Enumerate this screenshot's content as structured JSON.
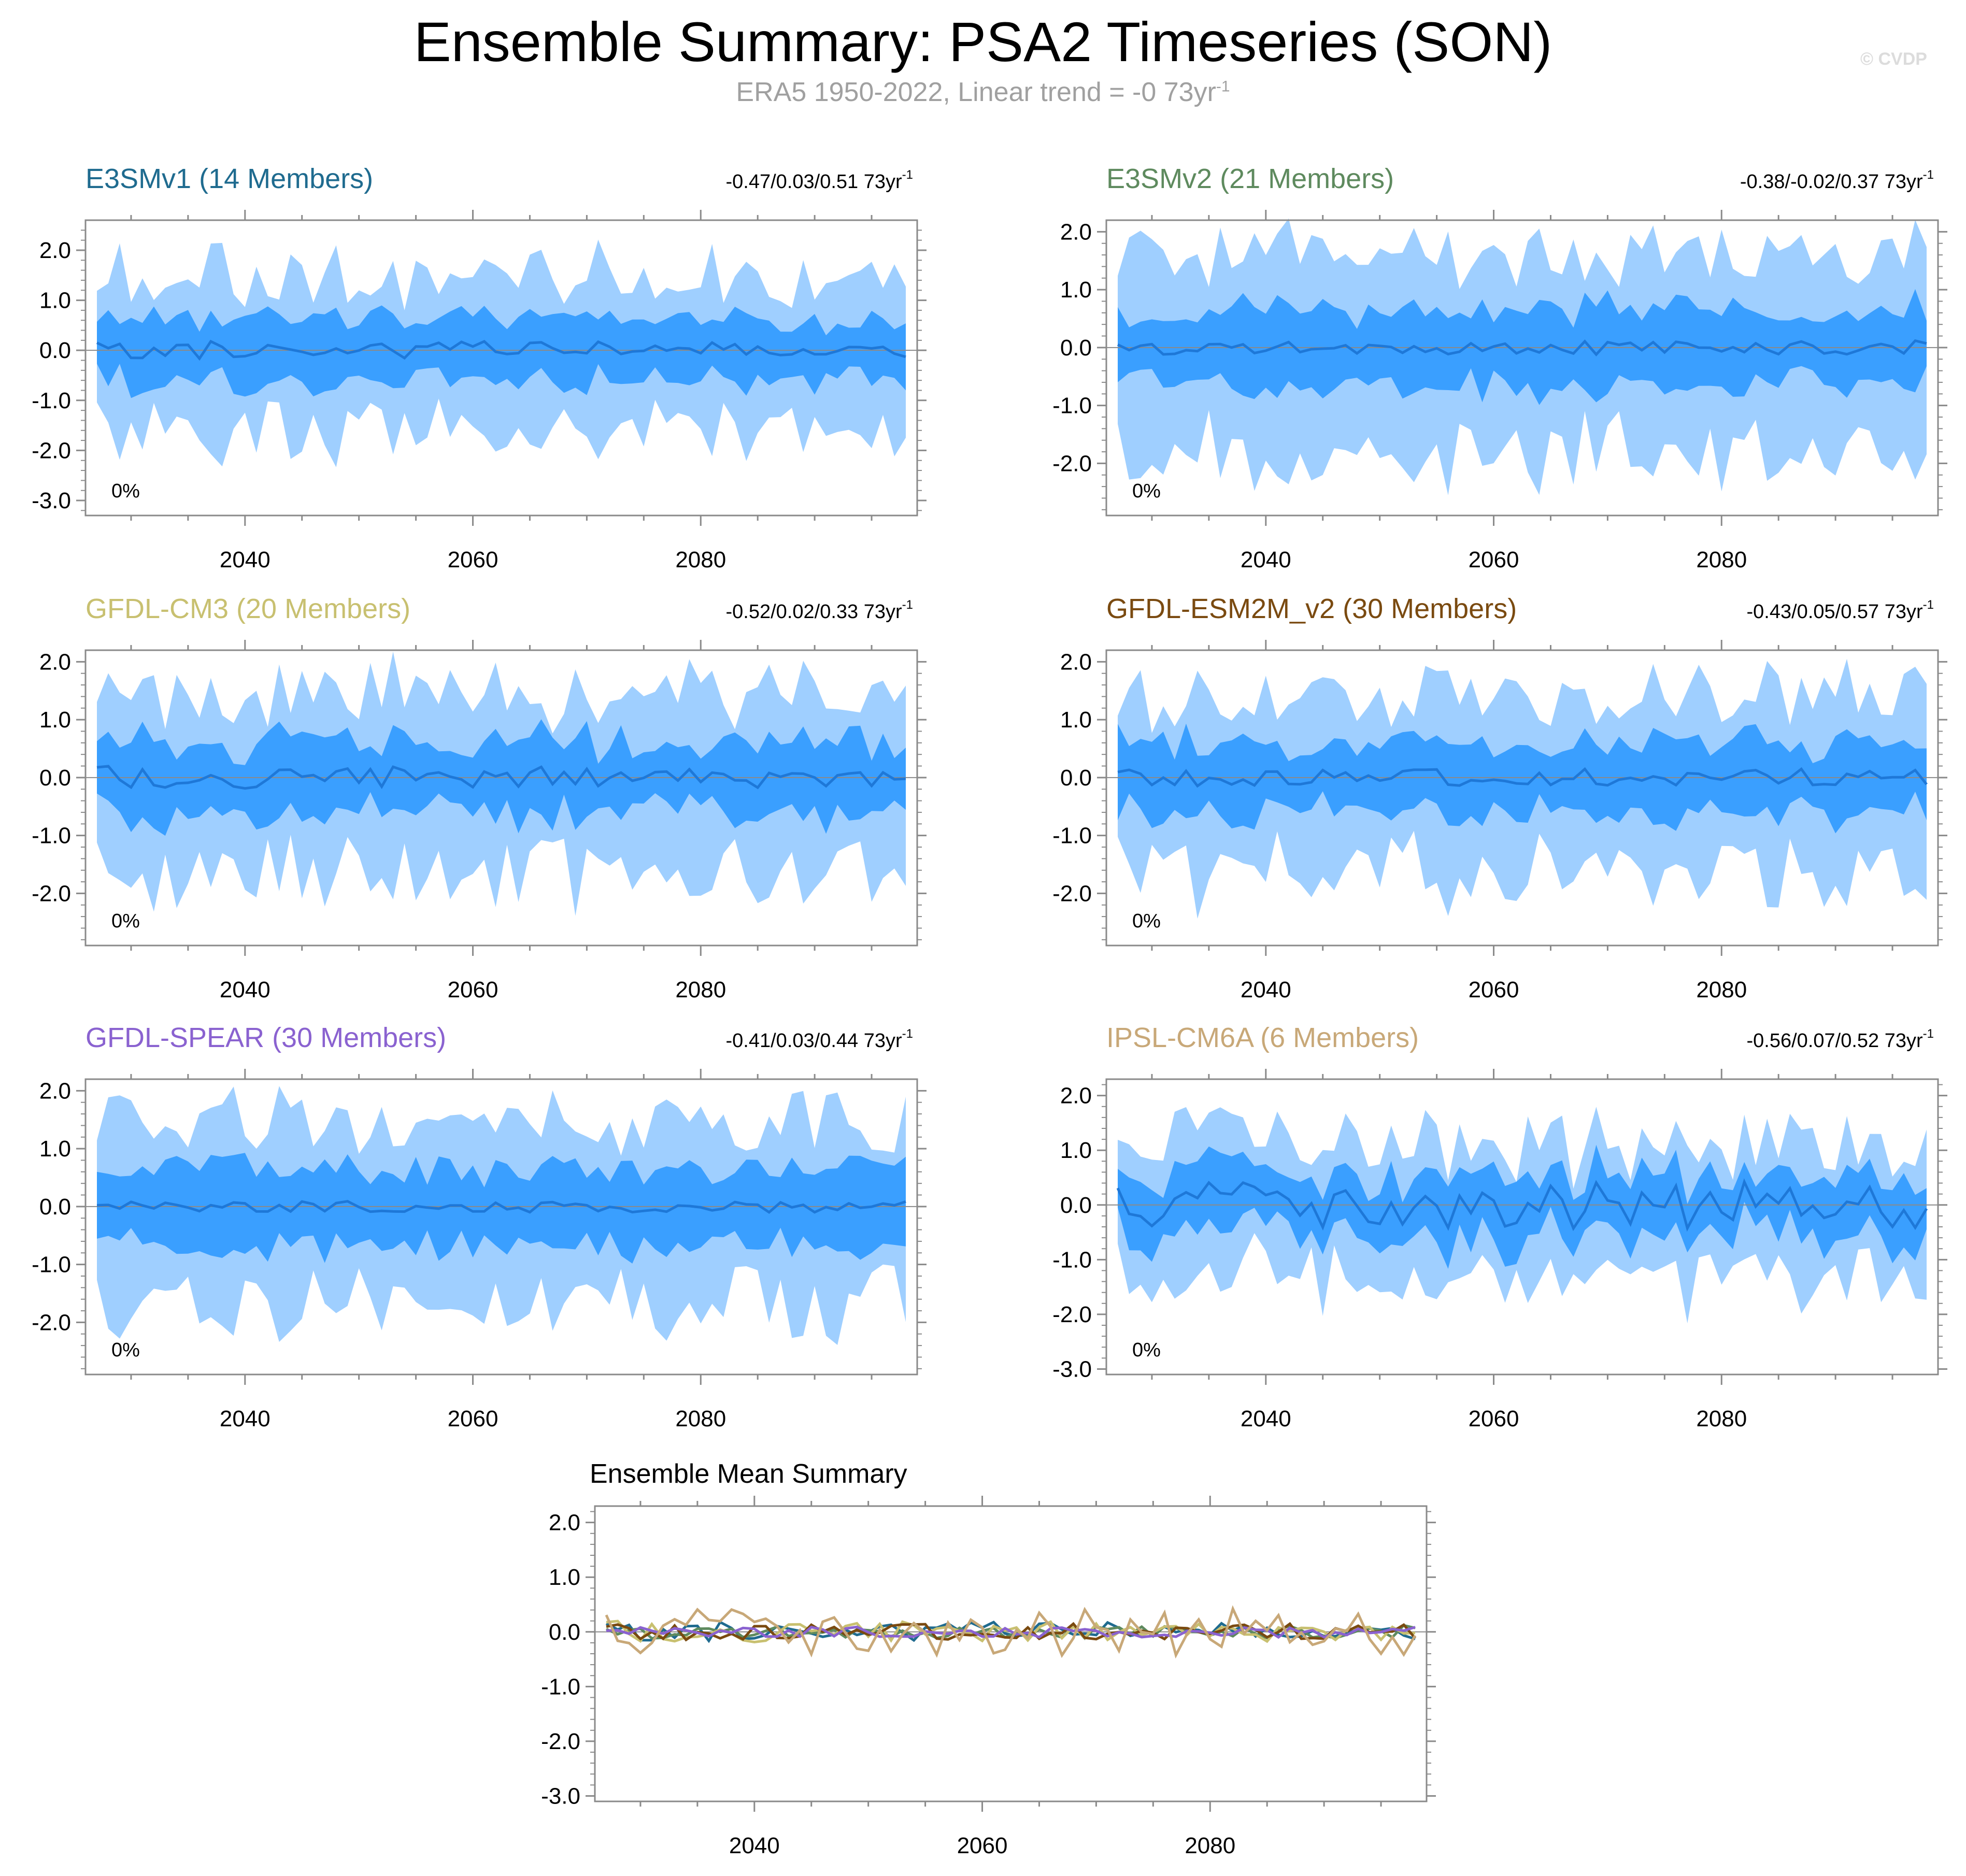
{
  "header": {
    "title": "Ensemble Summary: PSA2 Timeseries (SON)",
    "subtitle_main": "ERA5 1950-2022, Linear trend = -0 73yr",
    "subtitle_exp": "-1",
    "credit": "© CVDP"
  },
  "chart_data": [
    {
      "type": "area",
      "title": "E3SMv1 (14 Members)",
      "color": "#1f6b8f",
      "trend_main": "-0.47/0.03/0.51 73yr",
      "trend_exp": "-1",
      "pct": "0%",
      "xlim": [
        2026,
        2099
      ],
      "ylim": [
        -3.3,
        2.6
      ],
      "yticks": [
        2.0,
        1.0,
        0.0,
        -1.0,
        -2.0,
        -3.0
      ],
      "ytick_labels": [
        "2.0",
        "1.0",
        "0.0",
        "-1.0",
        "-2.0",
        "-3.0"
      ],
      "xticks": [
        2040,
        2060,
        2080
      ],
      "ytick_side": "left",
      "seed": 11,
      "spread": [
        0.6,
        1.3
      ],
      "mean_amp": 0.18
    },
    {
      "type": "area",
      "title": "E3SMv2 (21 Members)",
      "color": "#5e8a5e",
      "trend_main": "-0.38/-0.02/0.37 73yr",
      "trend_exp": "-1",
      "pct": "0%",
      "xlim": [
        2026,
        2099
      ],
      "ylim": [
        -2.9,
        2.2
      ],
      "yticks": [
        2.0,
        1.0,
        0.0,
        -1.0,
        -2.0
      ],
      "ytick_labels": [
        "2.0",
        "1.0",
        "0.0",
        "-1.0",
        "-2.0"
      ],
      "xticks": [
        2040,
        2060,
        2080
      ],
      "ytick_side": "left",
      "seed": 23,
      "spread": [
        0.65,
        1.35
      ],
      "mean_amp": 0.12
    },
    {
      "type": "area",
      "title": "GFDL-CM3 (20 Members)",
      "color": "#c8c070",
      "trend_main": "-0.52/0.02/0.33 73yr",
      "trend_exp": "-1",
      "pct": "0%",
      "xlim": [
        2026,
        2099
      ],
      "ylim": [
        -2.9,
        2.2
      ],
      "yticks": [
        2.0,
        1.0,
        0.0,
        -1.0,
        -2.0
      ],
      "ytick_labels": [
        "2.0",
        "1.0",
        "0.0",
        "-1.0",
        "-2.0"
      ],
      "xticks": [
        2040,
        2060,
        2080
      ],
      "ytick_side": "left",
      "seed": 37,
      "spread": [
        0.6,
        1.25
      ],
      "mean_amp": 0.2
    },
    {
      "type": "area",
      "title": "GFDL-ESM2M_v2 (30 Members)",
      "color": "#7a4a10",
      "trend_main": "-0.43/0.05/0.57 73yr",
      "trend_exp": "-1",
      "pct": "0%",
      "xlim": [
        2026,
        2099
      ],
      "ylim": [
        -2.9,
        2.2
      ],
      "yticks": [
        2.0,
        1.0,
        0.0,
        -1.0,
        -2.0
      ],
      "ytick_labels": [
        "2.0",
        "1.0",
        "0.0",
        "-1.0",
        "-2.0"
      ],
      "xticks": [
        2040,
        2060,
        2080
      ],
      "ytick_side": "left",
      "seed": 41,
      "spread": [
        0.6,
        1.25
      ],
      "mean_amp": 0.15
    },
    {
      "type": "area",
      "title": "GFDL-SPEAR (30 Members)",
      "color": "#8a62d0",
      "trend_main": "-0.41/0.03/0.44 73yr",
      "trend_exp": "-1",
      "pct": "0%",
      "xlim": [
        2026,
        2099
      ],
      "ylim": [
        -2.9,
        2.2
      ],
      "yticks": [
        2.0,
        1.0,
        0.0,
        -1.0,
        -2.0
      ],
      "ytick_labels": [
        "2.0",
        "1.0",
        "0.0",
        "-1.0",
        "-2.0"
      ],
      "xticks": [
        2040,
        2060,
        2080
      ],
      "ytick_side": "left",
      "seed": 53,
      "spread": [
        0.65,
        1.3
      ],
      "mean_amp": 0.1
    },
    {
      "type": "area",
      "title": "IPSL-CM6A (6 Members)",
      "color": "#c8a878",
      "trend_main": "-0.56/0.07/0.52 73yr",
      "trend_exp": "-1",
      "pct": "0%",
      "xlim": [
        2026,
        2099
      ],
      "ylim": [
        -3.1,
        2.3
      ],
      "yticks": [
        2.0,
        1.0,
        0.0,
        -1.0,
        -2.0,
        -3.0
      ],
      "ytick_labels": [
        "2.0",
        "1.0",
        "0.0",
        "-1.0",
        "-2.0",
        "-3.0"
      ],
      "xticks": [
        2040,
        2060,
        2080
      ],
      "ytick_side": "left",
      "seed": 67,
      "spread": [
        0.55,
        1.0
      ],
      "mean_amp": 0.45
    },
    {
      "type": "line",
      "title": "Ensemble Mean Summary",
      "xlim": [
        2026,
        2099
      ],
      "ylim": [
        -3.1,
        2.3
      ],
      "yticks": [
        2.0,
        1.0,
        0.0,
        -1.0,
        -2.0,
        -3.0
      ],
      "ytick_labels": [
        "2.0",
        "1.0",
        "0.0",
        "-1.0",
        "-2.0",
        "-3.0"
      ],
      "xticks": [
        2040,
        2060,
        2080
      ],
      "series": [
        {
          "name": "E3SMv1",
          "color": "#1f6b8f",
          "seed": 11,
          "amp": 0.18
        },
        {
          "name": "E3SMv2",
          "color": "#5e8a5e",
          "seed": 23,
          "amp": 0.12
        },
        {
          "name": "GFDL-CM3",
          "color": "#c8c070",
          "seed": 37,
          "amp": 0.2
        },
        {
          "name": "GFDL-ESM2M_v2",
          "color": "#7a4a10",
          "seed": 41,
          "amp": 0.15
        },
        {
          "name": "GFDL-SPEAR",
          "color": "#8a62d0",
          "seed": 53,
          "amp": 0.1
        },
        {
          "name": "IPSL-CM6A",
          "color": "#c8a878",
          "seed": 67,
          "amp": 0.45
        }
      ]
    }
  ]
}
